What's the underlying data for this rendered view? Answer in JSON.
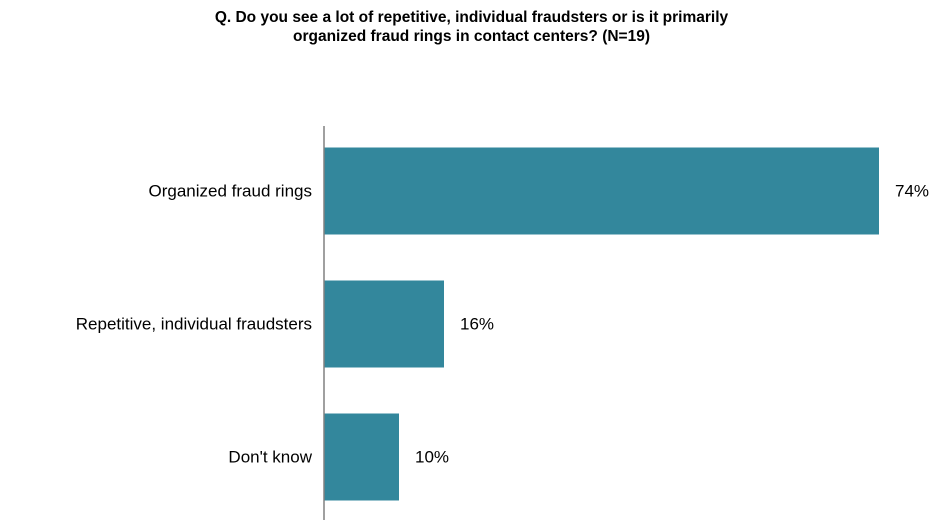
{
  "title_lines": [
    "Q. Do you see a lot of repetitive, individual fraudsters or is it primarily",
    "organized fraud rings in contact centers?  (N=19)"
  ],
  "colors": {
    "bar": "#33879c",
    "axis": "#808080"
  },
  "chart_data": {
    "type": "bar",
    "orientation": "horizontal",
    "title": "Q. Do you see a lot of repetitive, individual fraudsters or is it primarily organized fraud rings in contact centers?  (N=19)",
    "categories": [
      "Organized fraud rings",
      "Repetitive, individual fraudsters",
      "Don't know"
    ],
    "values": [
      74,
      16,
      10
    ],
    "value_labels": [
      "74%",
      "16%",
      "10%"
    ],
    "unit": "%",
    "xlim": [
      0,
      80
    ],
    "grid": false,
    "legend": "none"
  }
}
